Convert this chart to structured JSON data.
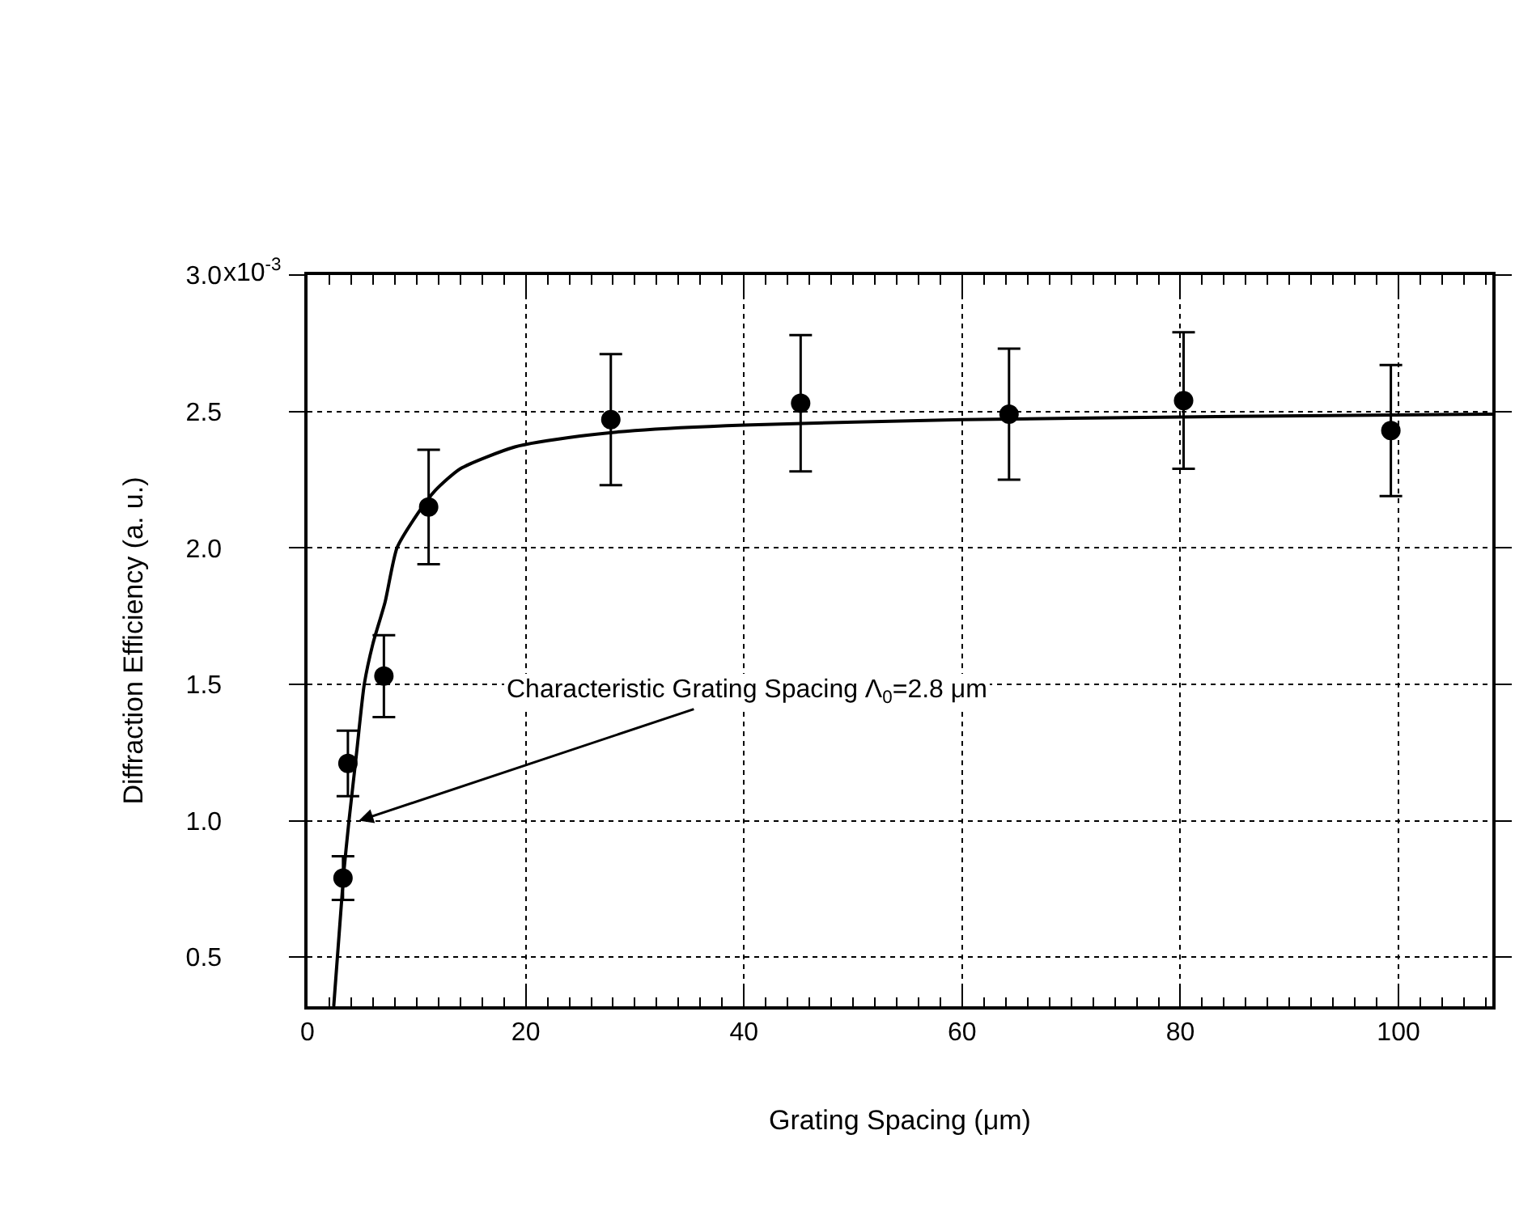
{
  "chart_data": {
    "type": "scatter",
    "xlabel": "Grating Spacing (μm)",
    "ylabel": "Diffraction Efficiency (a. u.)",
    "xlim": [
      0,
      108.6
    ],
    "xticks": [
      0,
      20,
      40,
      60,
      80,
      100
    ],
    "ylim": [
      0.32,
      3.0
    ],
    "yticks": [
      {
        "value": 0.5,
        "label": "0.5"
      },
      {
        "value": 1.0,
        "label": "1.0"
      },
      {
        "value": 1.5,
        "label": "1.5"
      },
      {
        "value": 2.0,
        "label": "2.0"
      },
      {
        "value": 2.5,
        "label": "2.5"
      },
      {
        "value": 3.0,
        "label": "3.0"
      }
    ],
    "grid": true,
    "series": [
      {
        "color": "#000000",
        "marker": "circle",
        "x": [
          3.25,
          3.7,
          7.0,
          11.1,
          27.8,
          45.2,
          64.3,
          80.3,
          99.3
        ],
        "values": [
          0.79,
          1.21,
          1.53,
          2.15,
          2.47,
          2.53,
          2.49,
          2.54,
          2.43
        ],
        "errors": [
          0.08,
          0.12,
          0.15,
          0.21,
          0.24,
          0.25,
          0.24,
          0.25,
          0.24
        ]
      },
      {
        "type": "line",
        "color": "#000000",
        "marker": "none",
        "line_style": "solid",
        "x": [
          2.4,
          3.3,
          3.8,
          4.5,
          5.2,
          6.0,
          7.1,
          8.2,
          10,
          11.7,
          14,
          19,
          25,
          30,
          40,
          60,
          80,
          108.6
        ],
        "values": [
          0.32,
          0.8,
          1.0,
          1.25,
          1.5,
          1.65,
          1.8,
          2.0,
          2.12,
          2.21,
          2.29,
          2.37,
          2.41,
          2.43,
          2.45,
          2.47,
          2.48,
          2.49
        ]
      }
    ],
    "annotations": [
      "x10$^{-3}$",
      {
        "text": "Characteristic Grating Spacing Λ$_{0}$=2.8 μm",
        "x": 4.7,
        "y": 1.0
      }
    ]
  }
}
